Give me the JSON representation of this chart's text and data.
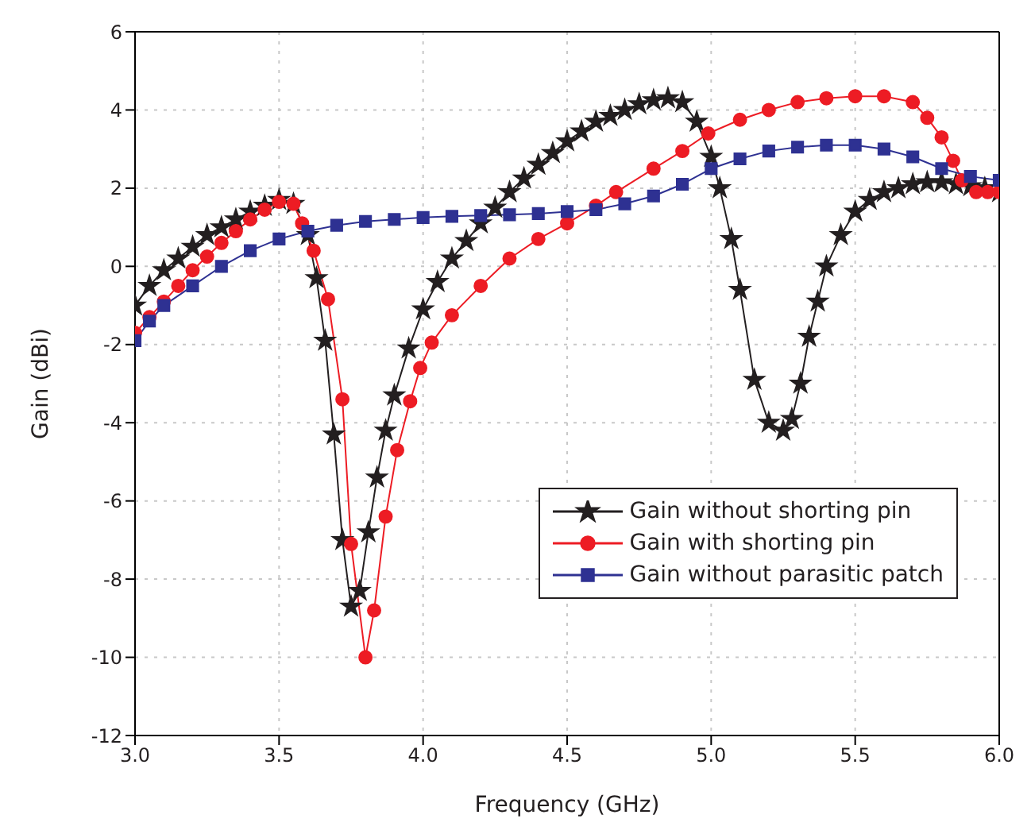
{
  "chart_data": {
    "type": "line",
    "xlabel": "Frequency (GHz)",
    "ylabel": "Gain (dBi)",
    "xlim": [
      3,
      6
    ],
    "xticks": [
      {
        "value": 3,
        "label": "3.0"
      },
      {
        "value": 3.5,
        "label": "3.5"
      },
      {
        "value": 4,
        "label": "4.0"
      },
      {
        "value": 4.5,
        "label": "4.5"
      },
      {
        "value": 5,
        "label": "5.0"
      },
      {
        "value": 5.5,
        "label": "5.5"
      },
      {
        "value": 6,
        "label": "6.0"
      }
    ],
    "ylim": [
      -12,
      6
    ],
    "yticks": [
      -12,
      -10,
      -8,
      -6,
      -4,
      -2,
      0,
      2,
      4,
      6
    ],
    "grid": true,
    "legend": "bottom right",
    "line_style": "solid",
    "series": [
      {
        "name": "Gain without shorting pin",
        "color": "#231f20",
        "marker": "star",
        "x": [
          3.0,
          3.05,
          3.1,
          3.15,
          3.2,
          3.25,
          3.3,
          3.35,
          3.4,
          3.45,
          3.5,
          3.55,
          3.6,
          3.63,
          3.66,
          3.69,
          3.72,
          3.75,
          3.78,
          3.81,
          3.84,
          3.87,
          3.9,
          3.95,
          4.0,
          4.05,
          4.1,
          4.15,
          4.2,
          4.25,
          4.3,
          4.35,
          4.4,
          4.45,
          4.5,
          4.55,
          4.6,
          4.65,
          4.7,
          4.75,
          4.8,
          4.85,
          4.9,
          4.95,
          5.0,
          5.03,
          5.07,
          5.1,
          5.15,
          5.2,
          5.25,
          5.28,
          5.31,
          5.34,
          5.37,
          5.4,
          5.45,
          5.5,
          5.55,
          5.6,
          5.65,
          5.7,
          5.75,
          5.8,
          5.85,
          5.9,
          5.95,
          6.0
        ],
        "values": [
          -1.0,
          -0.5,
          -0.1,
          0.2,
          0.5,
          0.8,
          1.0,
          1.2,
          1.4,
          1.55,
          1.7,
          1.6,
          0.8,
          -0.3,
          -1.9,
          -4.3,
          -7.0,
          -8.7,
          -8.3,
          -6.8,
          -5.4,
          -4.2,
          -3.3,
          -2.1,
          -1.1,
          -0.4,
          0.2,
          0.65,
          1.1,
          1.5,
          1.9,
          2.25,
          2.6,
          2.9,
          3.2,
          3.45,
          3.7,
          3.85,
          4.0,
          4.15,
          4.25,
          4.3,
          4.2,
          3.7,
          2.8,
          2.0,
          0.7,
          -0.6,
          -2.9,
          -4.0,
          -4.2,
          -3.9,
          -3.0,
          -1.8,
          -0.9,
          0.0,
          0.8,
          1.4,
          1.7,
          1.9,
          2.0,
          2.1,
          2.15,
          2.15,
          2.1,
          2.05,
          2.0,
          1.9
        ]
      },
      {
        "name": "Gain with shorting pin",
        "color": "#ed1c24",
        "marker": "circle",
        "x": [
          3.0,
          3.05,
          3.1,
          3.15,
          3.2,
          3.25,
          3.3,
          3.35,
          3.4,
          3.45,
          3.5,
          3.55,
          3.58,
          3.62,
          3.67,
          3.72,
          3.75,
          3.8,
          3.83,
          3.87,
          3.91,
          3.955,
          3.99,
          4.03,
          4.1,
          4.2,
          4.3,
          4.4,
          4.5,
          4.6,
          4.67,
          4.8,
          4.9,
          4.99,
          5.1,
          5.2,
          5.3,
          5.4,
          5.5,
          5.6,
          5.7,
          5.75,
          5.8,
          5.84,
          5.87,
          5.92,
          5.96,
          6.0
        ],
        "values": [
          -1.7,
          -1.3,
          -0.9,
          -0.5,
          -0.1,
          0.25,
          0.6,
          0.9,
          1.2,
          1.45,
          1.65,
          1.6,
          1.1,
          0.4,
          -0.84,
          -3.4,
          -7.1,
          -10.0,
          -8.8,
          -6.4,
          -4.7,
          -3.45,
          -2.6,
          -1.95,
          -1.25,
          -0.5,
          0.2,
          0.7,
          1.1,
          1.55,
          1.9,
          2.5,
          2.95,
          3.4,
          3.75,
          4.0,
          4.2,
          4.3,
          4.35,
          4.35,
          4.2,
          3.8,
          3.3,
          2.7,
          2.2,
          1.9,
          1.9,
          1.9
        ]
      },
      {
        "name": "Gain without parasitic patch",
        "color": "#2e3192",
        "marker": "square",
        "x": [
          3.0,
          3.05,
          3.1,
          3.2,
          3.3,
          3.4,
          3.5,
          3.6,
          3.7,
          3.8,
          3.9,
          4.0,
          4.1,
          4.2,
          4.3,
          4.4,
          4.5,
          4.6,
          4.7,
          4.8,
          4.9,
          5.0,
          5.1,
          5.2,
          5.3,
          5.4,
          5.5,
          5.6,
          5.7,
          5.8,
          5.9,
          6.0
        ],
        "values": [
          -1.9,
          -1.4,
          -1.0,
          -0.5,
          0.0,
          0.4,
          0.7,
          0.9,
          1.05,
          1.15,
          1.2,
          1.25,
          1.28,
          1.3,
          1.32,
          1.35,
          1.4,
          1.45,
          1.6,
          1.8,
          2.1,
          2.5,
          2.75,
          2.95,
          3.05,
          3.1,
          3.1,
          3.0,
          2.8,
          2.5,
          2.3,
          2.2
        ]
      }
    ]
  }
}
